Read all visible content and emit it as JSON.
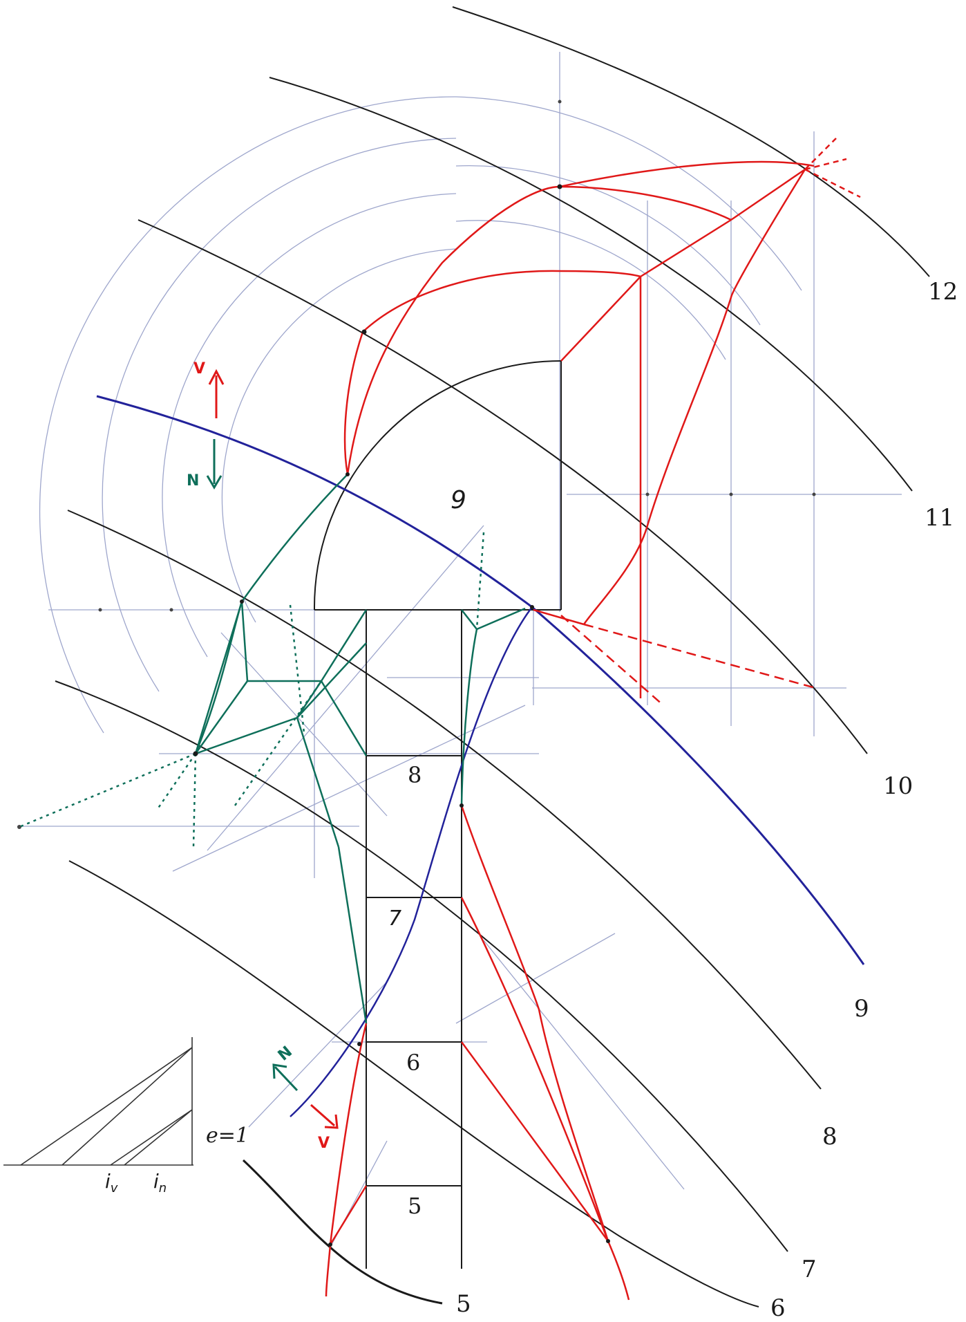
{
  "contour_labels": [
    "12",
    "11",
    "10",
    "9",
    "8",
    "7",
    "6",
    "5"
  ],
  "panel_labels": {
    "top": "9",
    "upper": "8",
    "middle": "7",
    "lower": "6",
    "bottom": "5"
  },
  "arrows": {
    "red_top": "V",
    "green_top": "N",
    "green_bottom": "N",
    "red_bottom": "V"
  },
  "scale_legend": {
    "e_label": "e=1",
    "iv_label": "i",
    "iv_sub": "v",
    "in_label": "i",
    "in_sub": "n"
  },
  "colors": {
    "contour": "#1a1a1a",
    "construction": "#9ea6cc",
    "blue_line": "#22229a",
    "red": "#e01818",
    "green": "#0e6f5a"
  }
}
